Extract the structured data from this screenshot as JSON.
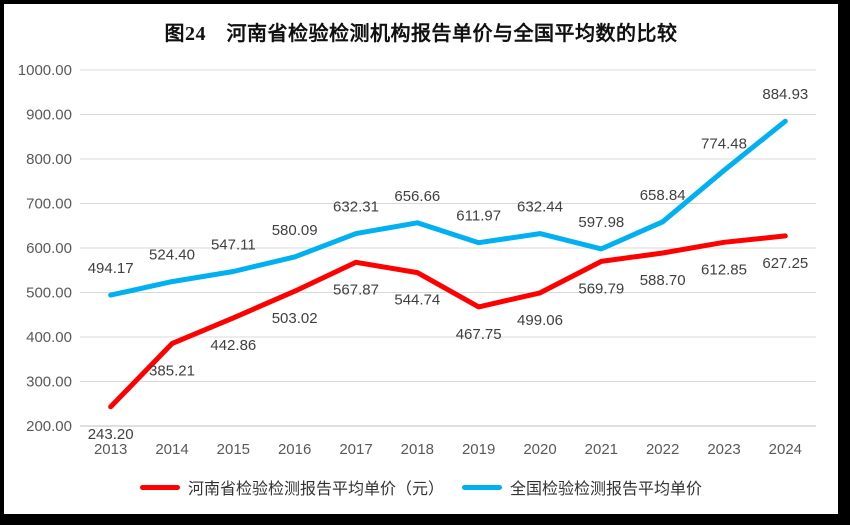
{
  "title": "图24　河南省检验检测机构报告单价与全国平均数的比较",
  "chart_data": {
    "type": "line",
    "categories": [
      "2013",
      "2014",
      "2015",
      "2016",
      "2017",
      "2018",
      "2019",
      "2020",
      "2021",
      "2022",
      "2023",
      "2024"
    ],
    "series": [
      {
        "name": "河南省检验检测报告平均单价（元）",
        "color": "#FF0000",
        "label_position": "below",
        "values": [
          243.2,
          385.21,
          442.86,
          503.02,
          567.87,
          544.74,
          467.75,
          499.06,
          569.79,
          588.7,
          612.85,
          627.25
        ]
      },
      {
        "name": "全国检验检测报告平均单价",
        "color": "#00B0F0",
        "label_position": "above",
        "values": [
          494.17,
          524.4,
          547.11,
          580.09,
          632.31,
          656.66,
          611.97,
          632.44,
          597.98,
          658.84,
          774.48,
          884.93
        ]
      }
    ],
    "ylim": [
      200,
      1000
    ],
    "ytick_step": 100,
    "ytick_format_decimals": 2,
    "grid": true,
    "value_labels": true,
    "legend_position": "bottom",
    "colors": {
      "gridline": "#D9D9D9",
      "axis_line": "#BFBFBF",
      "tick_text": "#595959",
      "value_label_text": "#404040"
    }
  }
}
